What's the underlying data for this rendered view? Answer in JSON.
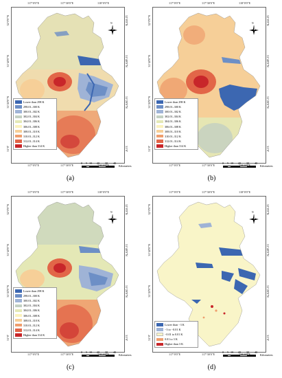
{
  "grid": {
    "lon_labels": [
      "117°0'0\"E",
      "117°30'0\"E",
      "118°0'0\"E"
    ],
    "lat_labels": [
      "32°0'0\"N",
      "31°40'0\"N",
      "31°20'0\"N",
      "31°0'"
    ]
  },
  "legend_temperature": [
    {
      "label": "Lower than 298 K",
      "color": "#3c67b1"
    },
    {
      "label": "298.01–300 K",
      "color": "#6d8fc6"
    },
    {
      "label": "300.01–302 K",
      "color": "#9fb3d6"
    },
    {
      "label": "302.01–304 K",
      "color": "#c3d0c2"
    },
    {
      "label": "304.01–306 K",
      "color": "#e4e8b6"
    },
    {
      "label": "306.01–308 K",
      "color": "#fbf2bd"
    },
    {
      "label": "308.01–310 K",
      "color": "#f6cf98"
    },
    {
      "label": "310.01–312 K",
      "color": "#ef9e6d"
    },
    {
      "label": "312.01–314 K",
      "color": "#e26648"
    },
    {
      "label": "Higher than 314 K",
      "color": "#c8262a"
    }
  ],
  "legend_difference": [
    {
      "label": "Lower than −3 K",
      "color": "#3c67b1"
    },
    {
      "label": "−3 to −0.01 K",
      "color": "#9fb3d6"
    },
    {
      "label": "−0.01 to 0.01 K",
      "color": "#f9f5c8"
    },
    {
      "label": "0.01 to 3 K",
      "color": "#ef9e6d"
    },
    {
      "label": "Higher than 3 K",
      "color": "#c8262a"
    }
  ],
  "scale_bar": {
    "ticks": [
      "0",
      "5",
      "10",
      "20",
      "30",
      "40"
    ],
    "unit": "Kilometers"
  },
  "north_arrow": {
    "label": "N",
    "icon": "compass-rose-icon"
  },
  "panels": [
    {
      "caption": "(a)",
      "variant": "a"
    },
    {
      "caption": "(b)",
      "variant": "b"
    },
    {
      "caption": "(c)",
      "variant": "c"
    },
    {
      "caption": "(d)",
      "variant": "d"
    }
  ],
  "colors": {
    "water": "#3c67b1",
    "urban_core": "#c8262a",
    "urban_ring": "#e26648",
    "frame": "#666666"
  }
}
